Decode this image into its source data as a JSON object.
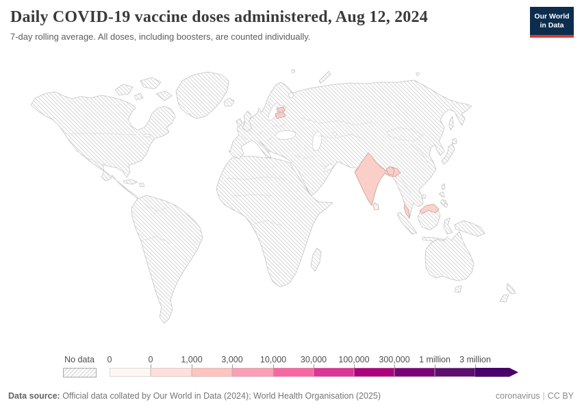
{
  "header": {
    "title": "Daily COVID-19 vaccine doses administered, Aug 12, 2024",
    "subtitle": "7-day rolling average. All doses, including boosters, are counted individually.",
    "logo": {
      "line1": "Our World",
      "line2": "in Data",
      "bg_color": "#0d2d4f",
      "accent_color": "#d83a33"
    }
  },
  "chart_data": {
    "type": "choropleth_world_map",
    "metric": "Daily COVID-19 vaccine doses administered",
    "aggregation": "7-day rolling average",
    "date": "Aug 12, 2024",
    "legend": {
      "no_data_label": "No data",
      "tick_labels": [
        "0",
        "0",
        "1,000",
        "3,000",
        "10,000",
        "30,000",
        "100,000",
        "300,000",
        "1 million",
        "3 million"
      ],
      "bin_colors": [
        "#fff7f3",
        "#fde0dd",
        "#fcc5c0",
        "#fa9fb5",
        "#f768a1",
        "#dd3497",
        "#ae017e",
        "#7a0177",
        "#5c0d6e",
        "#49006a"
      ],
      "no_data_pattern": "diagonal-hatch",
      "scale_end": "open-ended-arrow"
    },
    "countries_with_data": [
      {
        "name": "India",
        "value_bin": "1,000–3,000",
        "color": "#f9cfc8"
      },
      {
        "name": "Bangladesh",
        "value_bin": "1,000–3,000",
        "color": "#f9cfc8"
      },
      {
        "name": "Malaysia",
        "value_bin": "1,000–3,000",
        "color": "#f9d2ca"
      },
      {
        "name": "Estonia",
        "value_bin": "1,000–3,000",
        "color": "#f8ccc8"
      },
      {
        "name": "Latvia",
        "value_bin": "1,000–3,000",
        "color": "#f8ccc8"
      },
      {
        "name": "Sri Lanka",
        "value_bin": "0–1,000",
        "color": "#fdf2ed"
      }
    ],
    "all_other_countries": "No data"
  },
  "footer": {
    "datasource_label": "Data source:",
    "datasource_text": " Official data collated by Our World in Data (2024); World Health Organisation (2025)",
    "tag": "coronavirus",
    "separator": "|",
    "license": "CC BY"
  }
}
